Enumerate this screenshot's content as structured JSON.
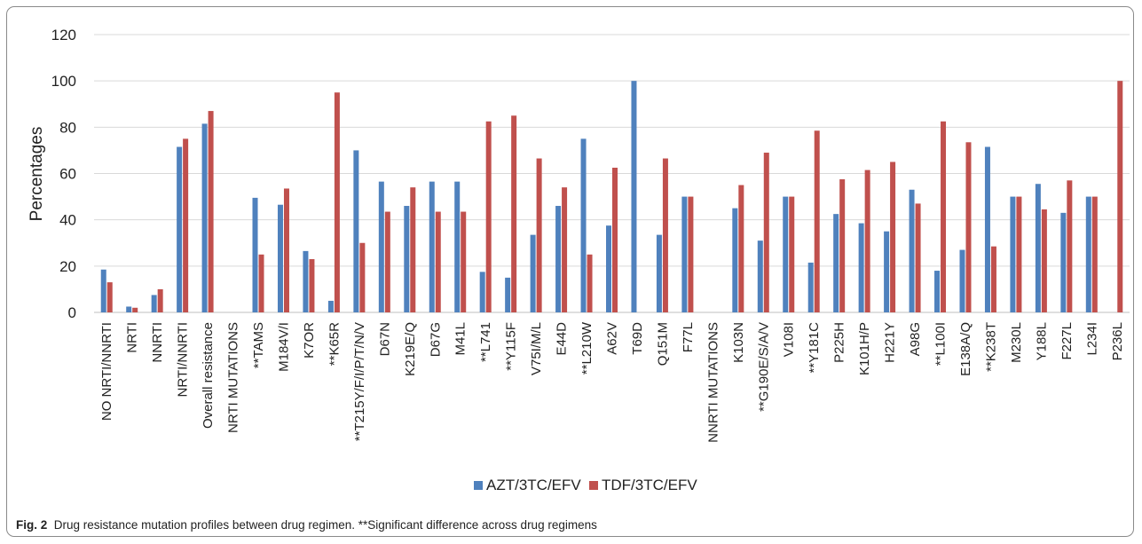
{
  "chart_data": {
    "type": "bar",
    "ylabel": "Percentages",
    "xlabel": "",
    "ylim": [
      0,
      120
    ],
    "yticks": [
      0,
      20,
      40,
      60,
      80,
      100,
      120
    ],
    "grid": true,
    "legend_position": "bottom",
    "categories": [
      "NO NRTI/NNRTI",
      "NRTI",
      "NNRTI",
      "NRTI/NNRTI",
      "Overall resistance",
      "NRTI MUTATIONS",
      "**TAMS",
      "M184V/I",
      "K7OR",
      "**K65R",
      "**T215Y/F/I/P/T/N/V",
      "D67N",
      "K219E/Q",
      "D67G",
      "M41L",
      "**L741",
      "**Y115F",
      "V75I/M/L",
      "E44D",
      "**L210W",
      "A62V",
      "T69D",
      "Q151M",
      "F77L",
      "NNRTI MUTATIONS",
      "K103N",
      "**G190E/S/A/V",
      "V108I",
      "**Y181C",
      "P225H",
      "K101H/P",
      "H221Y",
      "A98G",
      "**L100I",
      "E138A/Q",
      "**K238T",
      "M230L",
      "Y188L",
      "F227L",
      "L234I",
      "P236L"
    ],
    "series": [
      {
        "name": "AZT/3TC/EFV",
        "color": "#4f81bd",
        "values": [
          18.5,
          2.5,
          7.5,
          71.5,
          81.5,
          0,
          49.5,
          46.5,
          26.5,
          5,
          70,
          56.5,
          46,
          56.5,
          56.5,
          17.5,
          15,
          33.5,
          46,
          75,
          37.5,
          100,
          33.5,
          50,
          0,
          45,
          31,
          50,
          21.5,
          42.5,
          38.5,
          35,
          53,
          18,
          27,
          71.5,
          50,
          55.5,
          43,
          50,
          0
        ]
      },
      {
        "name": "TDF/3TC/EFV",
        "color": "#c0504d",
        "values": [
          13,
          2,
          10,
          75,
          87,
          0,
          25,
          53.5,
          23,
          95,
          30,
          43.5,
          54,
          43.5,
          43.5,
          82.5,
          85,
          66.5,
          54,
          25,
          62.5,
          0,
          66.5,
          50,
          0,
          55,
          69,
          50,
          78.5,
          57.5,
          61.5,
          65,
          47,
          82.5,
          73.5,
          28.5,
          50,
          44.5,
          57,
          50,
          100
        ]
      }
    ]
  },
  "caption": {
    "label": "Fig. 2",
    "text": "Drug resistance mutation profiles between drug regimen. **Significant difference across drug regimens"
  }
}
